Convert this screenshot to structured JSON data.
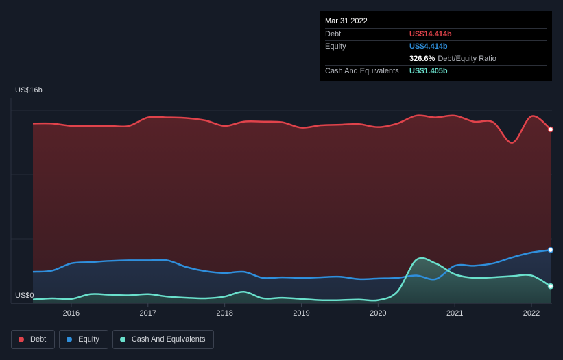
{
  "chart_data": {
    "type": "area",
    "ylim": [
      0,
      16
    ],
    "y_tick_labels": {
      "top": "US$16b",
      "bottom": "US$0"
    },
    "x_ticks": [
      2016,
      2017,
      2018,
      2019,
      2020,
      2021,
      2022
    ],
    "grid": true,
    "legend_position": "bottom-left",
    "series": [
      {
        "name": "Debt",
        "color": "#e0434b",
        "points": [
          [
            2015.5,
            14.9
          ],
          [
            2015.75,
            14.9
          ],
          [
            2016.0,
            14.7
          ],
          [
            2016.25,
            14.7
          ],
          [
            2016.5,
            14.7
          ],
          [
            2016.75,
            14.7
          ],
          [
            2017.0,
            15.4
          ],
          [
            2017.25,
            15.4
          ],
          [
            2017.5,
            15.35
          ],
          [
            2017.75,
            15.15
          ],
          [
            2018.0,
            14.7
          ],
          [
            2018.25,
            15.05
          ],
          [
            2018.5,
            15.05
          ],
          [
            2018.75,
            15.0
          ],
          [
            2019.0,
            14.55
          ],
          [
            2019.25,
            14.75
          ],
          [
            2019.5,
            14.8
          ],
          [
            2019.75,
            14.85
          ],
          [
            2020.0,
            14.6
          ],
          [
            2020.25,
            14.9
          ],
          [
            2020.5,
            15.55
          ],
          [
            2020.75,
            15.4
          ],
          [
            2021.0,
            15.55
          ],
          [
            2021.25,
            15.05
          ],
          [
            2021.5,
            15.0
          ],
          [
            2021.75,
            13.3
          ],
          [
            2022.0,
            15.5
          ],
          [
            2022.25,
            14.414
          ]
        ]
      },
      {
        "name": "Equity",
        "color": "#2f8fdc",
        "points": [
          [
            2015.5,
            2.6
          ],
          [
            2015.75,
            2.7
          ],
          [
            2016.0,
            3.3
          ],
          [
            2016.25,
            3.4
          ],
          [
            2016.5,
            3.5
          ],
          [
            2016.75,
            3.55
          ],
          [
            2017.0,
            3.55
          ],
          [
            2017.25,
            3.55
          ],
          [
            2017.5,
            3.0
          ],
          [
            2017.75,
            2.65
          ],
          [
            2018.0,
            2.5
          ],
          [
            2018.25,
            2.6
          ],
          [
            2018.5,
            2.1
          ],
          [
            2018.75,
            2.15
          ],
          [
            2019.0,
            2.1
          ],
          [
            2019.25,
            2.15
          ],
          [
            2019.5,
            2.2
          ],
          [
            2019.75,
            2.0
          ],
          [
            2020.0,
            2.05
          ],
          [
            2020.25,
            2.1
          ],
          [
            2020.5,
            2.3
          ],
          [
            2020.75,
            2.0
          ],
          [
            2021.0,
            3.1
          ],
          [
            2021.25,
            3.1
          ],
          [
            2021.5,
            3.3
          ],
          [
            2021.75,
            3.8
          ],
          [
            2022.0,
            4.2
          ],
          [
            2022.25,
            4.414
          ]
        ]
      },
      {
        "name": "Cash And Equivalents",
        "color": "#6ae0cc",
        "points": [
          [
            2015.5,
            0.3
          ],
          [
            2015.75,
            0.4
          ],
          [
            2016.0,
            0.35
          ],
          [
            2016.25,
            0.75
          ],
          [
            2016.5,
            0.7
          ],
          [
            2016.75,
            0.65
          ],
          [
            2017.0,
            0.75
          ],
          [
            2017.25,
            0.55
          ],
          [
            2017.5,
            0.45
          ],
          [
            2017.75,
            0.4
          ],
          [
            2018.0,
            0.55
          ],
          [
            2018.25,
            0.95
          ],
          [
            2018.5,
            0.4
          ],
          [
            2018.75,
            0.45
          ],
          [
            2019.0,
            0.35
          ],
          [
            2019.25,
            0.25
          ],
          [
            2019.5,
            0.25
          ],
          [
            2019.75,
            0.3
          ],
          [
            2020.0,
            0.25
          ],
          [
            2020.25,
            0.95
          ],
          [
            2020.5,
            3.6
          ],
          [
            2020.75,
            3.3
          ],
          [
            2021.0,
            2.4
          ],
          [
            2021.25,
            2.1
          ],
          [
            2021.5,
            2.15
          ],
          [
            2021.75,
            2.25
          ],
          [
            2022.0,
            2.3
          ],
          [
            2022.25,
            1.405
          ]
        ]
      }
    ]
  },
  "tooltip": {
    "date": "Mar 31 2022",
    "rows": [
      {
        "label": "Debt",
        "value": "US$14.414b",
        "color": "#e0434b"
      },
      {
        "label": "Equity",
        "value": "US$4.414b",
        "color": "#2f8fdc"
      },
      {
        "label": "",
        "value": "326.6%",
        "extra": "Debt/Equity Ratio",
        "color": "#ffffff"
      },
      {
        "label": "Cash And Equivalents",
        "value": "US$1.405b",
        "color": "#6ae0cc"
      }
    ]
  },
  "legend": [
    {
      "label": "Debt",
      "color": "#e0434b"
    },
    {
      "label": "Equity",
      "color": "#2f8fdc"
    },
    {
      "label": "Cash And Equivalents",
      "color": "#6ae0cc"
    }
  ]
}
